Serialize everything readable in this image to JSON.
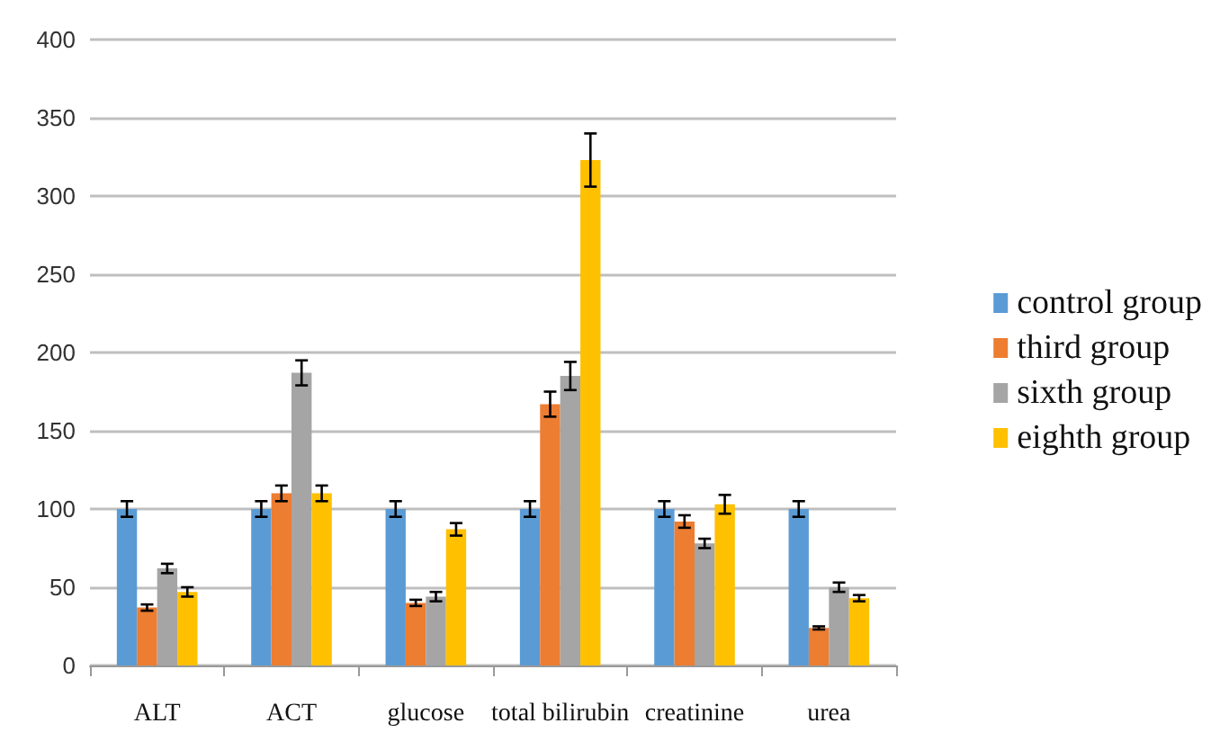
{
  "chart_data": {
    "type": "bar",
    "categories": [
      "ALT",
      "ACT",
      "glucose",
      "total bilirubin",
      "creatinine",
      "urea"
    ],
    "series": [
      {
        "name": "control group",
        "color": "#5b9bd5",
        "values": [
          100,
          100,
          100,
          100,
          100,
          100
        ],
        "errors": [
          5,
          5,
          5,
          5,
          5,
          5
        ]
      },
      {
        "name": "third group",
        "color": "#ed7d31",
        "values": [
          37,
          110,
          40,
          167,
          92,
          24
        ],
        "errors": [
          2,
          5,
          2,
          8,
          4,
          1
        ]
      },
      {
        "name": "sixth group",
        "color": "#a5a5a5",
        "values": [
          62,
          187,
          44,
          185,
          78,
          50
        ],
        "errors": [
          3,
          8,
          3,
          9,
          3,
          3
        ]
      },
      {
        "name": "eighth group",
        "color": "#ffc000",
        "values": [
          47,
          110,
          87,
          323,
          103,
          43
        ],
        "errors": [
          3,
          5,
          4,
          17,
          6,
          2
        ]
      }
    ],
    "ylim": [
      0,
      400
    ],
    "yticks": [
      0,
      50,
      100,
      150,
      200,
      250,
      300,
      350,
      400
    ],
    "grid": "y",
    "legend": "right"
  }
}
